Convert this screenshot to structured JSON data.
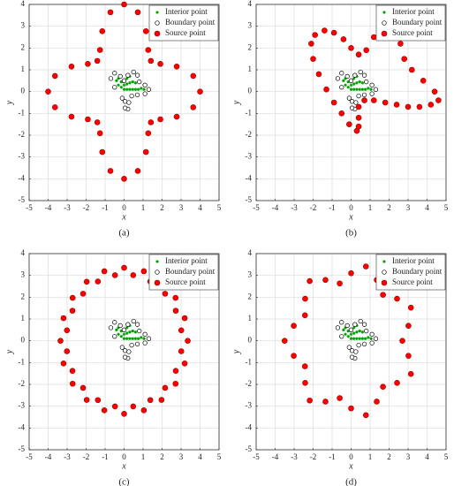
{
  "chart_data": [
    {
      "type": "scatter",
      "caption": "(a)",
      "x_label": "x",
      "y_label": "y",
      "xlim": [
        -5,
        5
      ],
      "ylim": [
        -5,
        4
      ],
      "xticks": [
        -5,
        -4,
        -3,
        -2,
        -1,
        0,
        1,
        2,
        3,
        4,
        5
      ],
      "yticks": [
        -5,
        -4,
        -3,
        -2,
        -1,
        0,
        1,
        2,
        3,
        4
      ],
      "grid": true,
      "legend": "upper right",
      "series": [
        {
          "name": "Interior point",
          "color": "#00a000",
          "marker": "star",
          "x": [
            -0.4,
            -0.3,
            -0.3,
            -0.15,
            -0.15,
            0,
            0,
            0.15,
            0.15,
            0.15,
            0.3,
            0.3,
            0.3,
            0.45,
            0.45,
            0.6,
            0.6,
            0.75,
            0.9,
            1.05
          ],
          "y": [
            0.5,
            0.3,
            0.6,
            0.2,
            0.45,
            0.1,
            0.3,
            0.1,
            0.35,
            0.6,
            0.1,
            0.4,
            0.7,
            0.1,
            0.45,
            0.1,
            0.4,
            0.1,
            0.15,
            0.1
          ]
        },
        {
          "name": "Boundary point",
          "color": "#000000",
          "marker": "open-circle",
          "x": [
            -0.1,
            -0.5,
            -0.7,
            -0.5,
            -0.2,
            0.0,
            0.2,
            0.5,
            0.7,
            0.8,
            1.1,
            1.3,
            1.1,
            0.7,
            0.4,
            0.25,
            0.2,
            0.05,
            0.05
          ],
          "y": [
            -0.3,
            0.2,
            0.6,
            0.85,
            0.7,
            0.5,
            0.75,
            0.9,
            0.75,
            0.45,
            0.3,
            0.1,
            -0.1,
            -0.15,
            -0.2,
            -0.5,
            -0.8,
            -0.75,
            -0.45
          ]
        },
        {
          "name": "Source point",
          "color": "#ff0000",
          "marker": "filled-circle",
          "x": [
            4,
            3.64,
            2.77,
            1.91,
            1.41,
            1.27,
            1.15,
            0.72,
            0,
            -0.72,
            -1.15,
            -1.27,
            -1.41,
            -1.91,
            -2.77,
            -3.64,
            -4,
            -3.64,
            -2.77,
            -1.91,
            -1.41,
            -1.27,
            -1.15,
            -0.72,
            0,
            0.72,
            1.15,
            1.27,
            1.41,
            1.91,
            2.77,
            3.64
          ],
          "y": [
            0,
            0.72,
            1.15,
            1.27,
            1.41,
            1.91,
            2.77,
            3.64,
            4,
            3.64,
            2.77,
            1.91,
            1.41,
            1.27,
            1.15,
            0.72,
            0,
            -0.72,
            -1.15,
            -1.27,
            -1.41,
            -1.91,
            -2.77,
            -3.64,
            -4,
            -3.64,
            -2.77,
            -1.91,
            -1.41,
            -1.27,
            -1.15,
            -0.72
          ]
        }
      ]
    },
    {
      "type": "scatter",
      "caption": "(b)",
      "x_label": "x",
      "y_label": "y",
      "xlim": [
        -5,
        5
      ],
      "ylim": [
        -5,
        4
      ],
      "xticks": [
        -5,
        -4,
        -3,
        -2,
        -1,
        0,
        1,
        2,
        3,
        4,
        5
      ],
      "yticks": [
        -5,
        -4,
        -3,
        -2,
        -1,
        0,
        1,
        2,
        3,
        4
      ],
      "grid": true,
      "legend": "upper right",
      "series": [
        {
          "name": "Interior point",
          "color": "#00a000",
          "marker": "star",
          "x": [
            -0.4,
            -0.3,
            -0.3,
            -0.15,
            -0.15,
            0,
            0,
            0.15,
            0.15,
            0.15,
            0.3,
            0.3,
            0.3,
            0.45,
            0.45,
            0.6,
            0.6,
            0.75,
            0.9,
            1.05
          ],
          "y": [
            0.5,
            0.3,
            0.6,
            0.2,
            0.45,
            0.1,
            0.3,
            0.1,
            0.35,
            0.6,
            0.1,
            0.4,
            0.7,
            0.1,
            0.45,
            0.1,
            0.4,
            0.1,
            0.15,
            0.1
          ]
        },
        {
          "name": "Boundary point",
          "color": "#000000",
          "marker": "open-circle",
          "x": [
            -0.1,
            -0.5,
            -0.7,
            -0.5,
            -0.2,
            0.0,
            0.2,
            0.5,
            0.7,
            0.8,
            1.1,
            1.3,
            1.1,
            0.7,
            0.4,
            0.25,
            0.2,
            0.05,
            0.05
          ],
          "y": [
            -0.3,
            0.2,
            0.6,
            0.85,
            0.7,
            0.5,
            0.75,
            0.9,
            0.75,
            0.45,
            0.3,
            0.1,
            -0.1,
            -0.15,
            -0.2,
            -0.5,
            -0.8,
            -0.75,
            -0.45
          ]
        },
        {
          "name": "Source point",
          "color": "#ff0000",
          "marker": "filled-circle",
          "x": [
            0.3,
            -0.1,
            -0.5,
            -0.9,
            -1.3,
            -1.7,
            -2.0,
            -2.1,
            -1.9,
            -1.4,
            -0.9,
            -0.4,
            0.0,
            0.4,
            0.8,
            1.2,
            1.6,
            2.0,
            2.4,
            2.6,
            2.8,
            3.2,
            3.8,
            4.4,
            4.6,
            4.2,
            3.6,
            3.0,
            2.4,
            1.8,
            1.2,
            0.7,
            0.4,
            0.4,
            0.4
          ],
          "y": [
            -1.8,
            -1.5,
            -1.0,
            -0.5,
            0.1,
            0.8,
            1.5,
            2.2,
            2.6,
            2.8,
            2.7,
            2.4,
            2.0,
            1.7,
            1.9,
            2.5,
            3.0,
            3.2,
            2.9,
            2.2,
            1.5,
            1.0,
            0.5,
            0.0,
            -0.4,
            -0.6,
            -0.7,
            -0.7,
            -0.6,
            -0.5,
            -0.4,
            -0.4,
            -0.7,
            -1.2,
            -1.6
          ]
        }
      ]
    },
    {
      "type": "scatter",
      "caption": "(c)",
      "x_label": "x",
      "y_label": "y",
      "xlim": [
        -5,
        5
      ],
      "ylim": [
        -5,
        4
      ],
      "xticks": [
        -5,
        -4,
        -3,
        -2,
        -1,
        0,
        1,
        2,
        3,
        4,
        5
      ],
      "yticks": [
        -5,
        -4,
        -3,
        -2,
        -1,
        0,
        1,
        2,
        3,
        4
      ],
      "grid": true,
      "legend": "upper right",
      "series": [
        {
          "name": "Interior point",
          "color": "#00a000",
          "marker": "star",
          "x": [
            -0.4,
            -0.3,
            -0.3,
            -0.15,
            -0.15,
            0,
            0,
            0.15,
            0.15,
            0.15,
            0.3,
            0.3,
            0.3,
            0.45,
            0.45,
            0.6,
            0.6,
            0.75,
            0.9,
            1.05
          ],
          "y": [
            0.5,
            0.3,
            0.6,
            0.2,
            0.45,
            0.1,
            0.3,
            0.1,
            0.35,
            0.6,
            0.1,
            0.4,
            0.7,
            0.1,
            0.45,
            0.1,
            0.4,
            0.1,
            0.15,
            0.1
          ]
        },
        {
          "name": "Boundary point",
          "color": "#000000",
          "marker": "open-circle",
          "x": [
            -0.1,
            -0.5,
            -0.7,
            -0.5,
            -0.2,
            0.0,
            0.2,
            0.5,
            0.7,
            0.8,
            1.1,
            1.3,
            1.1,
            0.7,
            0.4,
            0.25,
            0.2,
            0.05,
            0.05
          ],
          "y": [
            -0.3,
            0.2,
            0.6,
            0.85,
            0.7,
            0.5,
            0.75,
            0.9,
            0.75,
            0.45,
            0.3,
            0.1,
            -0.1,
            -0.15,
            -0.2,
            -0.5,
            -0.8,
            -0.75,
            -0.45
          ]
        },
        {
          "name": "Source point",
          "color": "#ff0000",
          "marker": "filled-circle",
          "x": [
            3.35,
            3.01,
            3.19,
            2.72,
            2.71,
            2.16,
            1.97,
            1.38,
            1.04,
            0.48,
            0,
            -0.48,
            -1.04,
            -1.38,
            -1.97,
            -2.16,
            -2.71,
            -2.72,
            -3.19,
            -3.01,
            -3.35,
            -3.01,
            -3.19,
            -2.72,
            -2.71,
            -2.16,
            -1.97,
            -1.38,
            -1.04,
            -0.48,
            0,
            0.48,
            1.04,
            1.38,
            1.97,
            2.16,
            2.71,
            2.72,
            3.19,
            3.01
          ],
          "y": [
            0,
            0.48,
            1.04,
            1.38,
            1.97,
            2.16,
            2.71,
            2.72,
            3.19,
            3.01,
            3.35,
            3.01,
            3.19,
            2.72,
            2.71,
            2.16,
            1.97,
            1.38,
            1.04,
            0.48,
            0,
            -0.48,
            -1.04,
            -1.38,
            -1.97,
            -2.16,
            -2.71,
            -2.72,
            -3.19,
            -3.01,
            -3.35,
            -3.01,
            -3.19,
            -2.72,
            -2.71,
            -2.16,
            -1.97,
            -1.38,
            -1.04,
            -0.48
          ]
        }
      ]
    },
    {
      "type": "scatter",
      "caption": "(d)",
      "x_label": "x",
      "y_label": "y",
      "xlim": [
        -5,
        5
      ],
      "ylim": [
        -5,
        4
      ],
      "xticks": [
        -5,
        -4,
        -3,
        -2,
        -1,
        0,
        1,
        2,
        3,
        4,
        5
      ],
      "yticks": [
        -5,
        -4,
        -3,
        -2,
        -1,
        0,
        1,
        2,
        3,
        4
      ],
      "grid": true,
      "legend": "upper right",
      "series": [
        {
          "name": "Interior point",
          "color": "#00a000",
          "marker": "star",
          "x": [
            -0.4,
            -0.3,
            -0.3,
            -0.15,
            -0.15,
            0,
            0,
            0.15,
            0.15,
            0.15,
            0.3,
            0.3,
            0.3,
            0.45,
            0.45,
            0.6,
            0.6,
            0.75,
            0.9,
            1.05
          ],
          "y": [
            0.5,
            0.3,
            0.6,
            0.2,
            0.45,
            0.1,
            0.3,
            0.1,
            0.35,
            0.6,
            0.1,
            0.4,
            0.7,
            0.1,
            0.45,
            0.1,
            0.4,
            0.1,
            0.15,
            0.1
          ]
        },
        {
          "name": "Boundary point",
          "color": "#000000",
          "marker": "open-circle",
          "x": [
            -0.1,
            -0.5,
            -0.7,
            -0.5,
            -0.2,
            0.0,
            0.2,
            0.5,
            0.7,
            0.8,
            1.1,
            1.3,
            1.1,
            0.7,
            0.4,
            0.25,
            0.2,
            0.05,
            0.05
          ],
          "y": [
            -0.3,
            0.2,
            0.6,
            0.85,
            0.7,
            0.5,
            0.75,
            0.9,
            0.75,
            0.45,
            0.3,
            0.1,
            -0.1,
            -0.15,
            -0.2,
            -0.5,
            -0.8,
            -0.75,
            -0.45
          ]
        },
        {
          "name": "Source point",
          "color": "#ff0000",
          "marker": "filled-circle",
          "x": [
            2.7,
            3.02,
            3.15,
            2.42,
            1.68,
            1.35,
            0.78,
            0,
            -0.6,
            -1.35,
            -2.18,
            -2.42,
            -2.43,
            -3.02,
            -3.5,
            -3.02,
            -2.43,
            -2.42,
            -2.18,
            -1.35,
            -0.6,
            0,
            0.78,
            1.35,
            1.68,
            2.42,
            3.15,
            3.02
          ],
          "y": [
            0,
            0.69,
            1.52,
            1.93,
            2.11,
            2.79,
            3.41,
            3.1,
            2.63,
            2.79,
            2.74,
            1.93,
            1.17,
            0.69,
            0,
            -0.69,
            -1.17,
            -1.93,
            -2.74,
            -2.79,
            -2.63,
            -3.1,
            -3.41,
            -2.79,
            -2.11,
            -1.93,
            -1.52,
            -0.69
          ]
        }
      ]
    }
  ]
}
